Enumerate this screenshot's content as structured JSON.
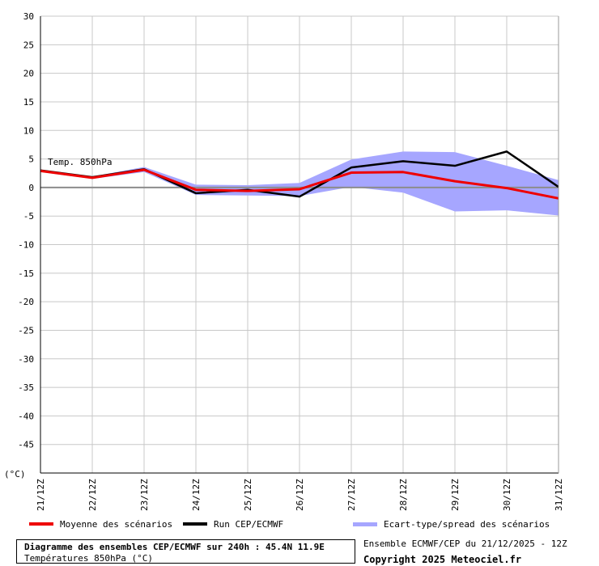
{
  "chart_data": {
    "type": "line",
    "categories": [
      "21/12Z",
      "22/12Z",
      "23/12Z",
      "24/12Z",
      "25/12Z",
      "26/12Z",
      "27/12Z",
      "28/12Z",
      "29/12Z",
      "30/12Z",
      "31/12Z"
    ],
    "y_unit_label": "(°C)",
    "ylim": [
      -50,
      30
    ],
    "yticks": [
      30,
      25,
      20,
      15,
      10,
      5,
      0,
      -5,
      -10,
      -15,
      -20,
      -25,
      -30,
      -35,
      -40,
      -45
    ],
    "grid": true,
    "annotation": "Temp. 850hPa",
    "series": [
      {
        "name": "Moyenne des scénarios",
        "color": "#ee0000",
        "values": [
          2.9,
          1.7,
          3.1,
          -0.4,
          -0.6,
          -0.3,
          2.6,
          2.7,
          1.1,
          -0.1,
          -1.9
        ]
      },
      {
        "name": "Run CEP/ECMWF",
        "color": "#000000",
        "values": [
          3.0,
          1.8,
          3.2,
          -1.0,
          -0.4,
          -1.6,
          3.5,
          4.6,
          3.8,
          6.3,
          0.1
        ]
      }
    ],
    "band": {
      "name": "Ecart-type/spread des scénarios",
      "color": "#a6a6ff",
      "upper": [
        3.1,
        1.9,
        3.6,
        0.5,
        0.4,
        0.8,
        4.9,
        6.3,
        6.2,
        3.8,
        1.3
      ],
      "lower": [
        2.7,
        1.5,
        2.7,
        -1.3,
        -1.4,
        -1.5,
        0.1,
        -0.9,
        -4.2,
        -4.0,
        -4.9
      ]
    }
  },
  "legend": {
    "mean": "Moyenne des scénarios",
    "run": "Run CEP/ECMWF",
    "spread": "Ecart-type/spread des scénarios"
  },
  "footer": {
    "title": "Diagramme des ensembles CEP/ECMWF sur 240h : 45.4N 11.9E",
    "subtitle": "Températures 850hPa (°C)",
    "ensemble": "Ensemble ECMWF/CEP du 21/12/2025 - 12Z",
    "copyright": "Copyright 2025 Meteociel.fr"
  }
}
